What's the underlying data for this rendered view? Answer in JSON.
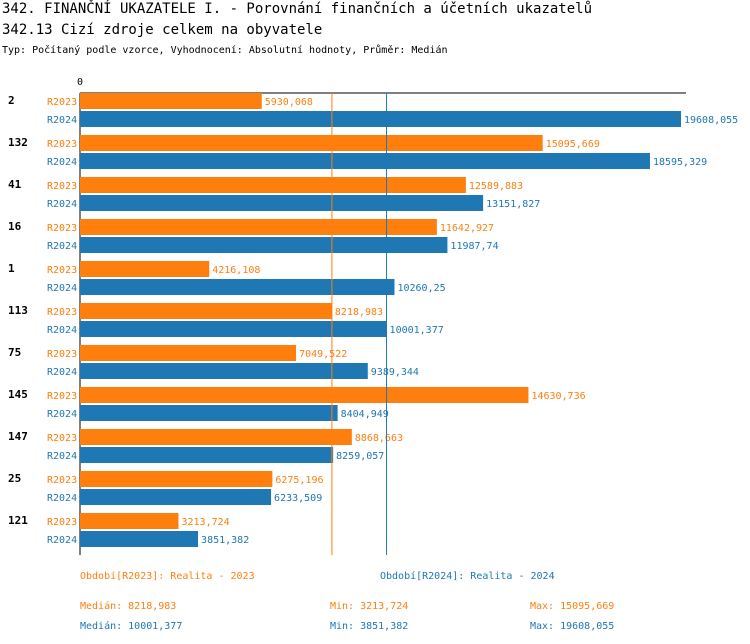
{
  "header": {
    "title": "342. FINANČNÍ UKAZATELE I. - Porovnání finančních a účetních ukazatelů",
    "subtitle": "342.13 Cizí zdroje celkem na obyvatele",
    "info": "Typ: Počítaný podle vzorce, Vyhodnocení: Absolutní hodnoty, Průměr: Medián"
  },
  "chart_data": {
    "type": "bar",
    "orientation": "horizontal",
    "x_tick_labels": [
      "0"
    ],
    "xlim": [
      0,
      19608.055
    ],
    "colors": {
      "R2023": "#ff7f0e",
      "R2024": "#1f77b4"
    },
    "categories": [
      "2",
      "132",
      "41",
      "16",
      "1",
      "113",
      "75",
      "145",
      "147",
      "25",
      "121"
    ],
    "series": [
      {
        "name": "R2023",
        "values": [
          5930.068,
          15095.669,
          12589.883,
          11642.927,
          4216.108,
          8218.983,
          7049.522,
          14630.736,
          8868.663,
          6275.196,
          3213.724
        ],
        "labels": [
          "5930,068",
          "15095,669",
          "12589,883",
          "11642,927",
          "4216,108",
          "8218,983",
          "7049,522",
          "14630,736",
          "8868,663",
          "6275,196",
          "3213,724"
        ]
      },
      {
        "name": "R2024",
        "values": [
          19608.055,
          18595.329,
          13151.827,
          11987.74,
          10260.25,
          10001.377,
          9389.344,
          8404.949,
          8259.057,
          6233.509,
          3851.382
        ],
        "labels": [
          "19608,055",
          "18595,329",
          "13151,827",
          "11987,74",
          "10260,25",
          "10001,377",
          "9389,344",
          "8404,949",
          "8259,057",
          "6233,509",
          "3851,382"
        ]
      }
    ],
    "median_lines": [
      {
        "series": "R2023",
        "value": 8218.983
      },
      {
        "series": "R2024",
        "value": 10001.377
      }
    ]
  },
  "footer": {
    "period_r2023": "Období[R2023]: Realita - 2023",
    "period_r2024": "Období[R2024]: Realita - 2024",
    "r2023": {
      "median": "Medián: 8218,983",
      "min": "Min: 3213,724",
      "max": "Max: 15095,669"
    },
    "r2024": {
      "median": "Medián: 10001,377",
      "min": "Min: 3851,382",
      "max": "Max: 19608,055"
    }
  }
}
